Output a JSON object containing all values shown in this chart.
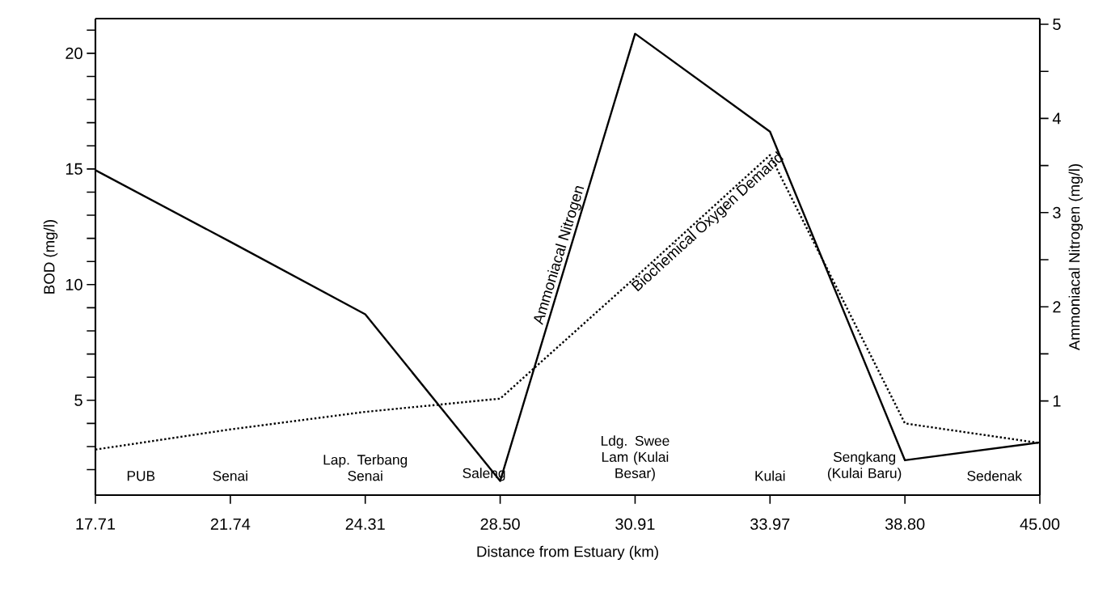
{
  "chart_data": {
    "type": "line",
    "xlabel": "Distance from Estuary (km)",
    "ylabel": "BOD (mg/l)",
    "y2label": "Ammoniacal Nitrogen (mg/l)",
    "categories": [
      "17.71",
      "21.74",
      "24.31",
      "28.50",
      "30.91",
      "33.97",
      "38.80",
      "45.00"
    ],
    "series": [
      {
        "name": "Ammoniacal Nitrogen",
        "color": "#000000",
        "axis": "y2",
        "line_style": "solid",
        "values": [
          3.45,
          2.69,
          1.92,
          0.15,
          4.9,
          3.86,
          0.37,
          0.56
        ]
      },
      {
        "name": "Biochemical Oxygen Demand",
        "color": "#000000",
        "line_style": "dotted",
        "values": [
          2.87,
          3.74,
          4.5,
          5.07,
          10.3,
          15.6,
          4.0,
          3.15
        ]
      }
    ],
    "ylim": [
      0.9,
      21.5
    ],
    "yticks": [
      {
        "value": 2,
        "label": null
      },
      {
        "value": 3,
        "label": null
      },
      {
        "value": 4,
        "label": null
      },
      5,
      {
        "value": 6,
        "label": null
      },
      {
        "value": 7,
        "label": null
      },
      {
        "value": 8,
        "label": null
      },
      {
        "value": 9,
        "label": null
      },
      10,
      {
        "value": 11,
        "label": null
      },
      {
        "value": 12,
        "label": null
      },
      {
        "value": 13,
        "label": null
      },
      {
        "value": 14,
        "label": null
      },
      15,
      {
        "value": 16,
        "label": null
      },
      {
        "value": 17,
        "label": null
      },
      {
        "value": 18,
        "label": null
      },
      {
        "value": 19,
        "label": null
      },
      20,
      {
        "value": 21,
        "label": null
      }
    ],
    "y2lim": [
      0,
      5.06
    ],
    "y2ticks": [
      1,
      {
        "value": 1.5,
        "label": null
      },
      2,
      {
        "value": 2.5,
        "label": null
      },
      3,
      {
        "value": 3.5,
        "label": null
      },
      4,
      {
        "value": 4.5,
        "label": null
      },
      5
    ],
    "annotations": [
      "PUB",
      "Senai",
      "Lap. Terbang Senai",
      "Saleng",
      "Ldg. Swee Lam (Kulai Besar)",
      "Kulai",
      "Sengkang (Kulai Baru)",
      "Sedenak"
    ]
  }
}
